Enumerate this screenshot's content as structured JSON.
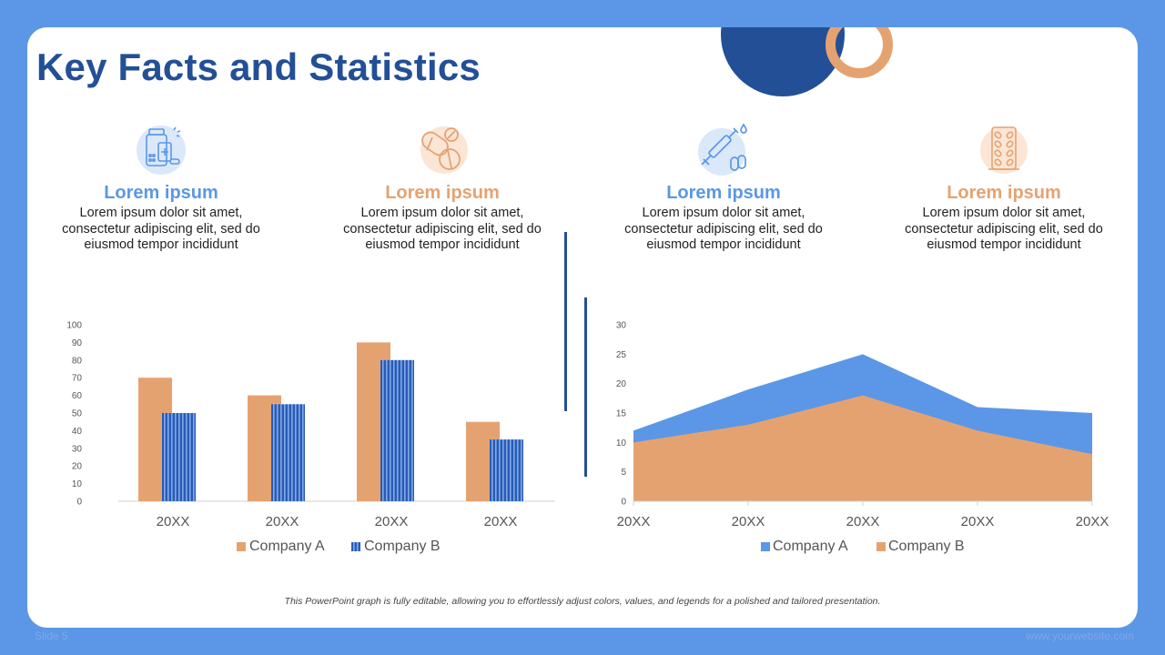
{
  "slide": {
    "title": "Key Facts and Statistics",
    "caption": "This PowerPoint graph is fully editable, allowing you to effortlessly adjust colors, values, and legends for a polished and tailored presentation.",
    "footer_left": "Slide 5",
    "footer_right": "www.yourwebsite.com"
  },
  "features": [
    {
      "icon": "medicine-bottle-icon",
      "heading": "Lorem ipsum",
      "text": "Lorem ipsum dolor sit amet, consectetur adipiscing elit, sed do eiusmod tempor incididunt",
      "color": "#5b97e6"
    },
    {
      "icon": "pills-icon",
      "heading": "Lorem ipsum",
      "text": "Lorem ipsum dolor sit amet, consectetur adipiscing elit, sed do eiusmod tempor incididunt",
      "color": "#e5a271"
    },
    {
      "icon": "syringe-icon",
      "heading": "Lorem ipsum",
      "text": "Lorem ipsum dolor sit amet, consectetur adipiscing elit, sed do eiusmod tempor incididunt",
      "color": "#5b97e6"
    },
    {
      "icon": "pill-pack-icon",
      "heading": "Lorem ipsum",
      "text": "Lorem ipsum dolor sit amet, consectetur adipiscing elit, sed do eiusmod tempor incididunt",
      "color": "#e5a271"
    }
  ],
  "colors": {
    "blue": "#5b97e6",
    "orange": "#e5a271",
    "navy": "#234f96",
    "bar_blue": "#2a5bb5"
  },
  "chart_data": [
    {
      "type": "bar",
      "categories": [
        "20XX",
        "20XX",
        "20XX",
        "20XX"
      ],
      "series": [
        {
          "name": "Company A",
          "values": [
            70,
            60,
            90,
            45
          ],
          "color": "#e5a271"
        },
        {
          "name": "Company B",
          "values": [
            50,
            55,
            80,
            35
          ],
          "color": "#2a5bb5",
          "pattern": "vertical-stripes"
        }
      ],
      "ylim": [
        0,
        100
      ],
      "yticks": [
        0,
        10,
        20,
        30,
        40,
        50,
        60,
        70,
        80,
        90,
        100
      ],
      "grid": false,
      "legend": "bottom"
    },
    {
      "type": "area",
      "categories": [
        "20XX",
        "20XX",
        "20XX",
        "20XX",
        "20XX"
      ],
      "series": [
        {
          "name": "Company A",
          "values": [
            12,
            19,
            25,
            16,
            15
          ],
          "color": "#5b97e6"
        },
        {
          "name": "Company B",
          "values": [
            10,
            13,
            18,
            12,
            8
          ],
          "color": "#e5a271"
        }
      ],
      "ylim": [
        0,
        30
      ],
      "yticks": [
        0,
        5,
        10,
        15,
        20,
        25,
        30
      ],
      "grid": false,
      "legend": "bottom"
    }
  ]
}
